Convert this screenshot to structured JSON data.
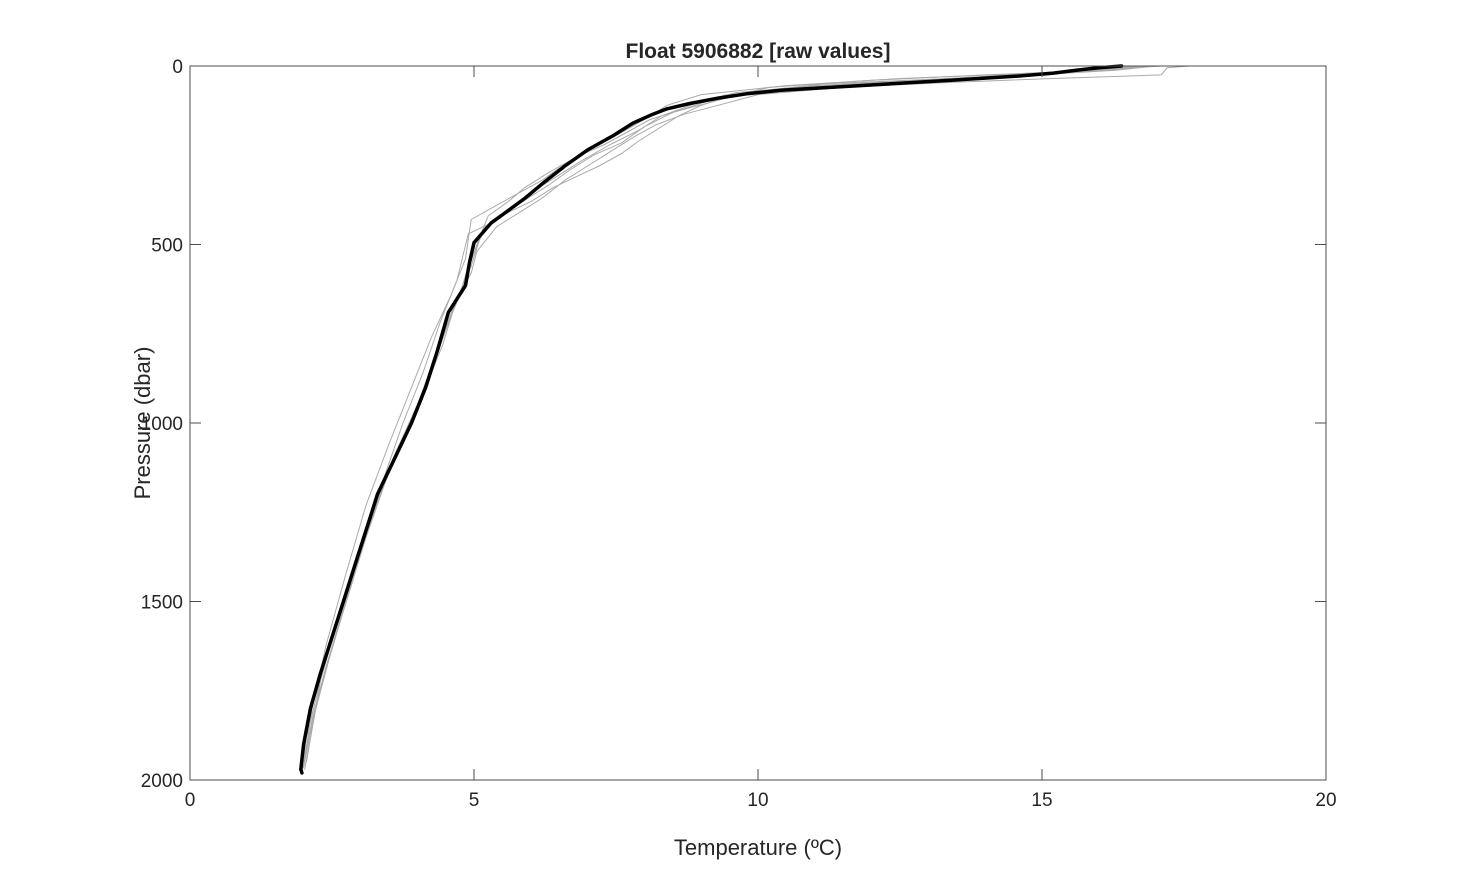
{
  "chart_data": {
    "type": "line",
    "title": "Float 5906882  [raw values]",
    "xlabel": "Temperature  (ºC)",
    "ylabel": "Pressure (dbar)",
    "xlim": [
      0,
      20
    ],
    "ylim": [
      0,
      2000
    ],
    "y_reversed": true,
    "xticks": [
      0,
      5,
      10,
      15,
      20
    ],
    "yticks": [
      0,
      500,
      1000,
      1500,
      2000
    ],
    "grid": false,
    "legend": "none",
    "colors": {
      "profiles": "#aaaaaa",
      "highlight": "#000000",
      "axes": "#4d4d4d"
    },
    "series": [
      {
        "role": "highlight",
        "x": [
          16.4,
          16.0,
          15.6,
          15.2,
          14.6,
          13.4,
          11.8,
          10.4,
          9.8,
          9.3,
          8.8,
          8.4,
          8.15,
          7.8,
          7.45,
          7.0,
          6.6,
          6.2,
          5.9,
          5.6,
          5.3,
          5.0,
          4.92,
          4.85,
          4.55,
          4.35,
          4.15,
          3.9,
          3.6,
          3.3,
          3.2,
          2.9,
          2.6,
          2.3,
          2.12,
          2.0,
          1.95,
          1.97
        ],
        "y": [
          0,
          5,
          12,
          20,
          28,
          40,
          55,
          68,
          78,
          90,
          105,
          120,
          135,
          160,
          195,
          235,
          280,
          330,
          370,
          405,
          440,
          495,
          550,
          615,
          690,
          800,
          900,
          1000,
          1100,
          1200,
          1250,
          1400,
          1550,
          1700,
          1800,
          1900,
          1970,
          1980
        ]
      },
      {
        "role": "profile",
        "x": [
          17.6,
          17.2,
          17.1,
          15.2,
          13.5,
          11.5,
          10.0,
          9.3,
          8.7,
          8.2,
          7.8,
          7.4,
          7.0,
          6.6,
          6.2,
          5.8,
          5.4,
          5.05,
          4.95,
          4.7,
          4.45,
          4.1,
          3.7,
          3.35,
          2.95,
          2.6,
          2.3,
          2.05
        ],
        "y": [
          0,
          5,
          25,
          35,
          45,
          60,
          80,
          110,
          135,
          165,
          200,
          240,
          280,
          320,
          370,
          410,
          450,
          520,
          580,
          650,
          780,
          920,
          1060,
          1200,
          1380,
          1550,
          1720,
          1950
        ]
      },
      {
        "role": "profile",
        "x": [
          16.6,
          16.2,
          15.5,
          14.0,
          12.0,
          10.2,
          9.5,
          9.0,
          8.6,
          8.25,
          7.9,
          7.6,
          7.2,
          6.8,
          6.4,
          6.0,
          5.6,
          5.2,
          4.9,
          4.75,
          4.55,
          4.3,
          4.0,
          3.65,
          3.3,
          2.95,
          2.6,
          2.3,
          2.05,
          1.98
        ],
        "y": [
          0,
          8,
          15,
          25,
          40,
          60,
          85,
          110,
          140,
          175,
          210,
          245,
          280,
          310,
          340,
          380,
          410,
          450,
          560,
          640,
          720,
          830,
          960,
          1080,
          1210,
          1380,
          1550,
          1720,
          1880,
          1975
        ]
      },
      {
        "role": "profile",
        "x": [
          17.0,
          16.4,
          15.0,
          12.5,
          10.5,
          9.0,
          8.4,
          8.0,
          7.5,
          7.0,
          6.6,
          6.2,
          5.8,
          5.4,
          4.95,
          4.85,
          4.6,
          4.25,
          3.85,
          3.5,
          3.1,
          2.75,
          2.4,
          2.15,
          2.0
        ],
        "y": [
          0,
          10,
          20,
          35,
          55,
          80,
          110,
          150,
          195,
          235,
          275,
          320,
          355,
          390,
          430,
          540,
          640,
          760,
          920,
          1060,
          1230,
          1420,
          1620,
          1800,
          1960
        ]
      },
      {
        "role": "profile",
        "x": [
          16.9,
          16.3,
          15.2,
          13.0,
          11.0,
          9.6,
          8.9,
          8.3,
          7.9,
          7.4,
          6.9,
          6.5,
          6.1,
          5.7,
          5.3,
          4.9,
          4.7,
          4.4,
          4.1,
          3.75,
          3.4,
          3.05,
          2.7,
          2.4,
          2.15,
          2.0
        ],
        "y": [
          0,
          12,
          22,
          38,
          55,
          75,
          105,
          140,
          180,
          220,
          265,
          305,
          345,
          395,
          440,
          470,
          600,
          720,
          860,
          1000,
          1160,
          1330,
          1520,
          1680,
          1830,
          1960
        ]
      },
      {
        "role": "profile",
        "x": [
          16.8,
          16.0,
          14.8,
          12.8,
          10.8,
          9.4,
          8.8,
          8.1,
          7.7,
          7.3,
          6.8,
          6.3,
          5.9,
          5.6,
          5.25,
          5.05,
          4.8,
          4.5,
          4.2,
          3.85,
          3.45,
          3.1,
          2.75,
          2.45,
          2.2,
          2.02
        ],
        "y": [
          0,
          10,
          22,
          40,
          60,
          82,
          115,
          150,
          185,
          220,
          255,
          300,
          340,
          380,
          420,
          500,
          620,
          740,
          880,
          1010,
          1160,
          1320,
          1500,
          1660,
          1810,
          1970
        ]
      },
      {
        "role": "profile",
        "x": [
          17.1,
          16.5,
          15.4,
          13.8,
          11.2,
          9.9,
          9.2,
          8.5,
          8.0,
          7.6,
          7.1,
          6.7,
          6.3,
          5.9,
          5.5,
          5.15,
          4.95,
          4.65,
          4.35,
          4.0,
          3.6,
          3.2,
          2.85,
          2.5,
          2.2,
          2.0
        ],
        "y": [
          0,
          6,
          18,
          32,
          50,
          72,
          100,
          130,
          170,
          215,
          250,
          290,
          335,
          375,
          415,
          460,
          560,
          670,
          800,
          950,
          1090,
          1260,
          1450,
          1630,
          1800,
          1965
        ]
      }
    ]
  }
}
